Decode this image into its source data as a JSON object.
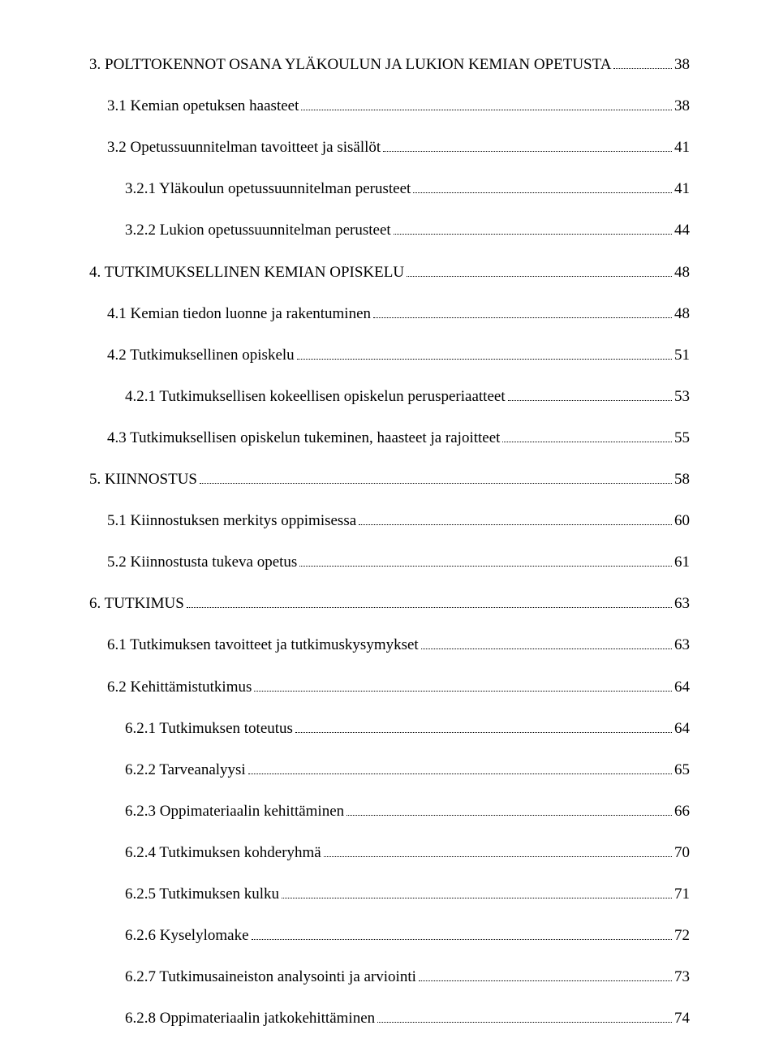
{
  "toc": [
    {
      "level": 1,
      "label": "3. POLTTOKENNOT OSANA YLÄKOULUN JA LUKION KEMIAN OPETUSTA",
      "page": "38"
    },
    {
      "level": 2,
      "label": "3.1 Kemian opetuksen haasteet",
      "page": "38"
    },
    {
      "level": 2,
      "label": "3.2 Opetussuunnitelman tavoitteet ja sisällöt",
      "page": "41"
    },
    {
      "level": 3,
      "label": "3.2.1 Yläkoulun opetussuunnitelman perusteet",
      "page": "41"
    },
    {
      "level": 3,
      "label": "3.2.2 Lukion opetussuunnitelman perusteet",
      "page": "44"
    },
    {
      "level": 1,
      "label": "4. TUTKIMUKSELLINEN KEMIAN OPISKELU",
      "page": "48"
    },
    {
      "level": 2,
      "label": "4.1 Kemian tiedon luonne ja rakentuminen",
      "page": "48"
    },
    {
      "level": 2,
      "label": "4.2 Tutkimuksellinen opiskelu",
      "page": "51"
    },
    {
      "level": 3,
      "label": "4.2.1 Tutkimuksellisen kokeellisen opiskelun perusperiaatteet",
      "page": "53"
    },
    {
      "level": 2,
      "label": "4.3 Tutkimuksellisen opiskelun tukeminen, haasteet ja rajoitteet",
      "page": "55"
    },
    {
      "level": 1,
      "label": "5. KIINNOSTUS",
      "page": "58"
    },
    {
      "level": 2,
      "label": "5.1 Kiinnostuksen merkitys oppimisessa",
      "page": "60"
    },
    {
      "level": 2,
      "label": "5.2 Kiinnostusta tukeva opetus",
      "page": "61"
    },
    {
      "level": 1,
      "label": "6. TUTKIMUS",
      "page": "63"
    },
    {
      "level": 2,
      "label": "6.1 Tutkimuksen tavoitteet ja tutkimuskysymykset",
      "page": "63"
    },
    {
      "level": 2,
      "label": "6.2 Kehittämistutkimus",
      "page": "64"
    },
    {
      "level": 3,
      "label": "6.2.1 Tutkimuksen toteutus",
      "page": "64"
    },
    {
      "level": 3,
      "label": "6.2.2 Tarveanalyysi",
      "page": "65"
    },
    {
      "level": 3,
      "label": "6.2.3 Oppimateriaalin kehittäminen",
      "page": "66"
    },
    {
      "level": 3,
      "label": "6.2.4 Tutkimuksen kohderyhmä",
      "page": "70"
    },
    {
      "level": 3,
      "label": "6.2.5 Tutkimuksen kulku",
      "page": "71"
    },
    {
      "level": 3,
      "label": "6.2.6 Kyselylomake",
      "page": "72"
    },
    {
      "level": 3,
      "label": "6.2.7 Tutkimusaineiston analysointi ja arviointi",
      "page": "73"
    },
    {
      "level": 3,
      "label": "6.2.8 Oppimateriaalin jatkokehittäminen",
      "page": "74"
    }
  ]
}
